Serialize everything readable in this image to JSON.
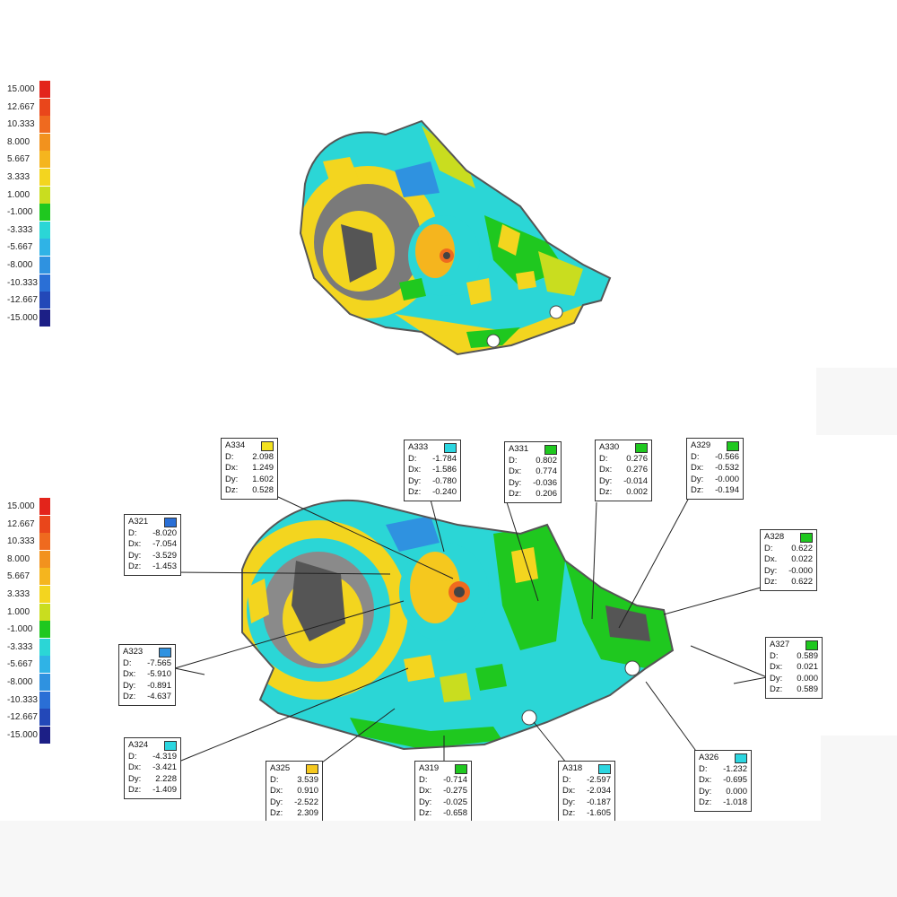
{
  "scale": {
    "labels": [
      "15.000",
      "12.667",
      "10.333",
      "8.000",
      "5.667",
      "3.333",
      "1.000",
      "-1.000",
      "-3.333",
      "-5.667",
      "-8.000",
      "-10.333",
      "-12.667",
      "-15.000"
    ],
    "colors": [
      "#e3241b",
      "#e9461b",
      "#ef6a1f",
      "#f2921e",
      "#f5b51e",
      "#f3d51f",
      "#c9dd1f",
      "#1fc81f",
      "#2bd6d6",
      "#2fb3e6",
      "#2f92e0",
      "#2a6fd6",
      "#2348b8",
      "#1c1f86"
    ]
  },
  "callouts": [
    {
      "id": "A334",
      "color": "#f3e21f",
      "rows": [
        [
          "D:",
          "2.098"
        ],
        [
          "Dx:",
          "1.249"
        ],
        [
          "Dy:",
          "1.602"
        ],
        [
          "Dz:",
          "0.528"
        ]
      ]
    },
    {
      "id": "A333",
      "color": "#2bd6e0",
      "rows": [
        [
          "D:",
          "-1.784"
        ],
        [
          "Dx:",
          "-1.586"
        ],
        [
          "Dy:",
          "-0.780"
        ],
        [
          "Dz:",
          "-0.240"
        ]
      ]
    },
    {
      "id": "A331",
      "color": "#1fc81f",
      "rows": [
        [
          "D:",
          "0.802"
        ],
        [
          "Dx:",
          "0.774"
        ],
        [
          "Dy:",
          "-0.036"
        ],
        [
          "Dz:",
          "0.206"
        ]
      ]
    },
    {
      "id": "A330",
      "color": "#1fc81f",
      "rows": [
        [
          "D:",
          "0.276"
        ],
        [
          "Dx:",
          "0.276"
        ],
        [
          "Dy:",
          "-0.014"
        ],
        [
          "Dz:",
          "0.002"
        ]
      ]
    },
    {
      "id": "A329",
      "color": "#1fc81f",
      "rows": [
        [
          "D:",
          "-0.566"
        ],
        [
          "Dx:",
          "-0.532"
        ],
        [
          "Dy:",
          "-0.000"
        ],
        [
          "Dz:",
          "-0.194"
        ]
      ]
    },
    {
      "id": "A328",
      "color": "#1fc81f",
      "rows": [
        [
          "D:",
          "0.622"
        ],
        [
          "Dx.",
          "0.022"
        ],
        [
          "Dy:",
          "-0.000"
        ],
        [
          "Dz:",
          "0.622"
        ]
      ]
    },
    {
      "id": "A321",
      "color": "#2a6fd6",
      "rows": [
        [
          "D:",
          "-8.020"
        ],
        [
          "Dx:",
          "-7.054"
        ],
        [
          "Dy:",
          "-3.529"
        ],
        [
          "Dz:",
          "-1.453"
        ]
      ]
    },
    {
      "id": "A323",
      "color": "#2f92e0",
      "rows": [
        [
          "D:",
          "-7.565"
        ],
        [
          "Dx:",
          "-5.910"
        ],
        [
          "Dy:",
          "-0.891"
        ],
        [
          "Dz:",
          "-4.637"
        ]
      ]
    },
    {
      "id": "A327",
      "color": "#1fc81f",
      "rows": [
        [
          "D:",
          "0.589"
        ],
        [
          "Dx:",
          "0.021"
        ],
        [
          "Dy:",
          "0.000"
        ],
        [
          "Dz:",
          "0.589"
        ]
      ]
    },
    {
      "id": "A324",
      "color": "#2bd6e0",
      "rows": [
        [
          "D:",
          "-4.319"
        ],
        [
          "Dx:",
          "-3.421"
        ],
        [
          "Dy:",
          "2.228"
        ],
        [
          "Dz:",
          "-1.409"
        ]
      ]
    },
    {
      "id": "A325",
      "color": "#f5c81e",
      "rows": [
        [
          "D:",
          "3.539"
        ],
        [
          "Dx:",
          "0.910"
        ],
        [
          "Dy:",
          "-2.522"
        ],
        [
          "Dz:",
          "2.309"
        ]
      ]
    },
    {
      "id": "A319",
      "color": "#1fc81f",
      "rows": [
        [
          "D:",
          "-0.714"
        ],
        [
          "Dx:",
          "-0.275"
        ],
        [
          "Dy:",
          "-0.025"
        ],
        [
          "Dz:",
          "-0.658"
        ]
      ]
    },
    {
      "id": "A318",
      "color": "#2bd6e0",
      "rows": [
        [
          "D:",
          "-2.597"
        ],
        [
          "Dx:",
          "-2.034"
        ],
        [
          "Dy:",
          "-0.187"
        ],
        [
          "Dz:",
          "-1.605"
        ]
      ]
    },
    {
      "id": "A326",
      "color": "#2bd6e0",
      "rows": [
        [
          "D:",
          "-1.232"
        ],
        [
          "Dx:",
          "-0.695"
        ],
        [
          "Dy:",
          "0.000"
        ],
        [
          "Dz:",
          "-1.018"
        ]
      ]
    }
  ]
}
